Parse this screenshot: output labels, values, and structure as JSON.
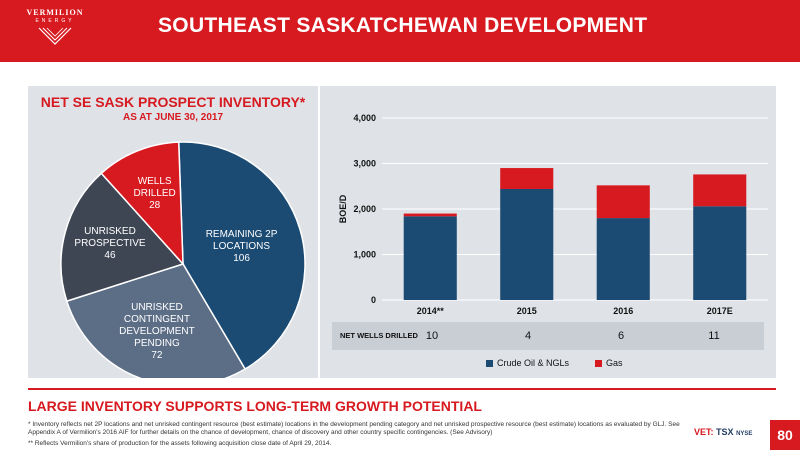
{
  "header": {
    "logo_name": "VERMILION",
    "logo_sub": "ENERGY",
    "title": "SOUTHEAST SASKATCHEWAN DEVELOPMENT"
  },
  "pie": {
    "title": "NET SE SASK PROSPECT INVENTORY*",
    "subtitle": "AS AT JUNE 30, 2017"
  },
  "chart_data": [
    {
      "type": "pie",
      "title": "NET SE SASK PROSPECT INVENTORY*",
      "subtitle": "AS AT JUNE 30, 2017",
      "slices": [
        {
          "label_lines": [
            "REMAINING 2P",
            "LOCATIONS"
          ],
          "value": 106,
          "color": "#1b4a73"
        },
        {
          "label_lines": [
            "UNRISKED",
            "CONTINGENT",
            "DEVELOPMENT",
            "PENDING"
          ],
          "value": 72,
          "color": "#5c6d86"
        },
        {
          "label_lines": [
            "UNRISKED",
            "PROSPECTIVE"
          ],
          "value": 46,
          "color": "#3e4654"
        },
        {
          "label_lines": [
            "WELLS",
            "DRILLED"
          ],
          "value": 28,
          "color": "#d71920"
        }
      ]
    },
    {
      "type": "bar",
      "stacked": true,
      "categories": [
        "2014**",
        "2015",
        "2016",
        "2017E"
      ],
      "series": [
        {
          "name": "Crude Oil & NGLs",
          "values": [
            1840,
            2440,
            1800,
            2060
          ],
          "color": "#1b4a73"
        },
        {
          "name": "Gas",
          "values": [
            60,
            460,
            720,
            700
          ],
          "color": "#d71920"
        }
      ],
      "ylabel": "BOE/D",
      "ylim": [
        0,
        4000
      ],
      "yticks": [
        "0",
        "1,000",
        "2,000",
        "3,000",
        "4,000"
      ],
      "ytick_values": [
        0,
        1000,
        2000,
        3000,
        4000
      ],
      "grid": true,
      "legend": "bottom"
    }
  ],
  "wells": {
    "label": "NET WELLS DRILLED",
    "values": [
      "10",
      "4",
      "6",
      "11"
    ]
  },
  "tagline": "LARGE INVENTORY SUPPORTS LONG-TERM GROWTH POTENTIAL",
  "footnotes": {
    "line1": "* Inventory reflects net 2P locations and net unrisked contingent resource (best estimate) locations in the development pending category and net unrisked prospective resource (best estimate) locations as evaluated by GLJ. See Appendix A of Vermilion's 2016 AIF for further details on the chance of development, chance of discovery and other country specific contingencies. (See Advisory)",
    "line2": "** Reflects Vermilion's share of production for the assets following acquisition close date of April 29, 2014."
  },
  "ticker": {
    "prefix": "VET:",
    "tsx": "TSX",
    "nyse": "NYSE"
  },
  "page_number": "80"
}
